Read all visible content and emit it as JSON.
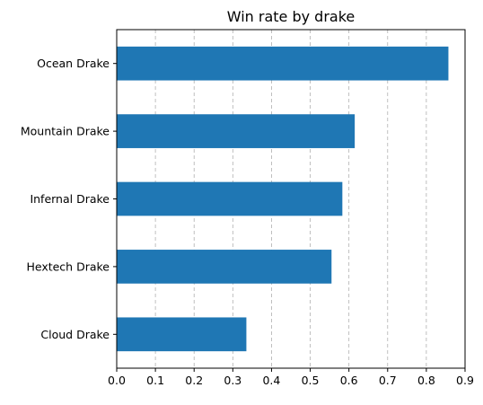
{
  "chart_data": {
    "type": "bar",
    "orientation": "horizontal",
    "title": "Win rate by drake",
    "xlabel": "",
    "ylabel": "",
    "categories": [
      "Cloud Drake",
      "Hextech Drake",
      "Infernal Drake",
      "Mountain Drake",
      "Ocean Drake"
    ],
    "values": [
      0.335,
      0.555,
      0.583,
      0.615,
      0.857
    ],
    "xlim": [
      0,
      0.9
    ],
    "xticks": [
      "0.0",
      "0.1",
      "0.2",
      "0.3",
      "0.4",
      "0.5",
      "0.6",
      "0.7",
      "0.8",
      "0.9"
    ],
    "grid": "x-dashed",
    "legend": "none",
    "colors": {
      "bar": "#1f77b4",
      "grid": "#b0b0b0",
      "axes": "#000000"
    }
  }
}
